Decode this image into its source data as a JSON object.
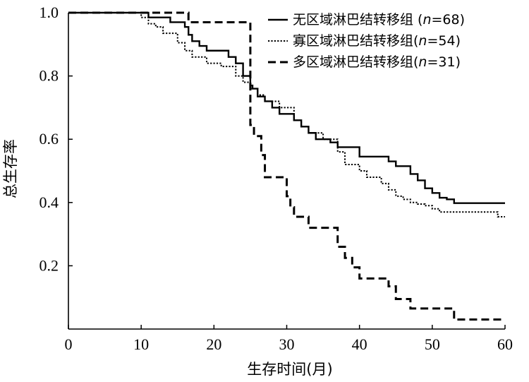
{
  "chart_data": {
    "type": "line",
    "xlabel": "生存时间(月)",
    "ylabel": "总生存率",
    "xlim": [
      0,
      60
    ],
    "ylim": [
      0,
      1.0
    ],
    "x_ticks": [
      "0",
      "10",
      "20",
      "30",
      "40",
      "50",
      "60"
    ],
    "y_ticks": [
      "0.2",
      "0.4",
      "0.6",
      "0.8",
      "1.0"
    ],
    "legend_position": "top-right",
    "grid": false,
    "series": [
      {
        "name": "无区域淋巴结转移组 (n=68)",
        "label_prefix": "无区域淋巴结转移组 (",
        "label_n": "n",
        "label_suffix": "=68)",
        "style": "solid",
        "x": [
          0,
          11,
          14,
          16,
          16.5,
          17,
          18,
          19,
          22,
          23,
          24,
          25,
          25.3,
          26,
          27,
          28,
          29,
          30,
          31,
          32,
          33,
          34,
          36,
          37,
          40,
          44,
          45,
          47,
          48,
          49,
          50,
          51,
          52,
          53,
          60
        ],
        "y": [
          1.0,
          0.985,
          0.97,
          0.955,
          0.93,
          0.91,
          0.895,
          0.88,
          0.86,
          0.84,
          0.8,
          0.77,
          0.76,
          0.735,
          0.72,
          0.7,
          0.68,
          0.68,
          0.66,
          0.64,
          0.62,
          0.6,
          0.59,
          0.575,
          0.545,
          0.53,
          0.515,
          0.49,
          0.47,
          0.445,
          0.43,
          0.415,
          0.41,
          0.398,
          0.398
        ]
      },
      {
        "name": "寡区域淋巴结转移组(n=54)",
        "label_prefix": "寡区域淋巴结转移组(",
        "label_n": "n",
        "label_suffix": "=54)",
        "style": "dotted",
        "x": [
          0,
          10,
          11,
          12,
          13,
          15,
          16,
          17,
          19,
          21,
          23,
          24,
          25,
          26,
          27,
          29,
          31,
          32,
          33,
          35,
          37,
          38,
          40,
          41,
          43,
          44,
          45,
          46,
          47,
          48,
          49,
          50,
          51,
          52,
          59,
          60
        ],
        "y": [
          1.0,
          0.985,
          0.965,
          0.955,
          0.935,
          0.905,
          0.88,
          0.86,
          0.84,
          0.83,
          0.8,
          0.78,
          0.76,
          0.74,
          0.72,
          0.7,
          0.66,
          0.64,
          0.62,
          0.6,
          0.56,
          0.52,
          0.5,
          0.48,
          0.46,
          0.44,
          0.42,
          0.41,
          0.4,
          0.395,
          0.39,
          0.38,
          0.37,
          0.37,
          0.355,
          0.355
        ]
      },
      {
        "name": "多区域淋巴结转移组(n=31)",
        "label_prefix": "多区域淋巴结转移组(",
        "label_n": "n",
        "label_suffix": "=31)",
        "style": "dashed",
        "x": [
          0,
          16,
          16.5,
          25,
          25.5,
          26.5,
          27,
          28.5,
          30,
          30.5,
          31,
          32,
          33,
          37,
          38,
          39,
          40,
          44,
          45,
          47,
          49,
          53,
          60
        ],
        "y": [
          1.0,
          1.0,
          0.97,
          0.645,
          0.61,
          0.55,
          0.48,
          0.48,
          0.42,
          0.385,
          0.355,
          0.355,
          0.32,
          0.26,
          0.225,
          0.195,
          0.16,
          0.135,
          0.095,
          0.065,
          0.065,
          0.03,
          0.03
        ]
      }
    ]
  }
}
